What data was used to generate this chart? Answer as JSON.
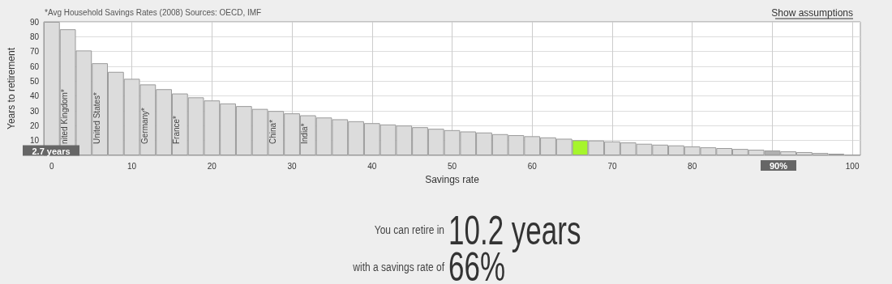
{
  "chart_data": {
    "type": "bar",
    "xlabel": "Savings rate",
    "ylabel": "Years to retirement",
    "x": [
      0,
      2,
      4,
      6,
      8,
      10,
      12,
      14,
      16,
      18,
      20,
      22,
      24,
      26,
      28,
      30,
      32,
      34,
      36,
      38,
      40,
      42,
      44,
      46,
      48,
      50,
      52,
      54,
      56,
      58,
      60,
      62,
      64,
      66,
      68,
      70,
      72,
      74,
      76,
      78,
      80,
      82,
      84,
      86,
      88,
      90,
      92,
      94,
      96,
      98,
      100
    ],
    "values": [
      90,
      85,
      70.7,
      62.1,
      56.3,
      51.6,
      47.8,
      44.6,
      41.7,
      39.1,
      37,
      35,
      33.2,
      31.3,
      29.9,
      28.3,
      27,
      25.5,
      24.3,
      23,
      21.7,
      20.8,
      20.1,
      19,
      17.9,
      17,
      16.1,
      15.4,
      14.3,
      13.6,
      12.9,
      12.1,
      11.2,
      10.2,
      10,
      9.4,
      8.7,
      7.8,
      7.2,
      6.7,
      6,
      5.4,
      4.9,
      4.3,
      3.8,
      3.3,
      2.7,
      2.2,
      1.6,
      1.1,
      0.5
    ],
    "colors": [
      "#dcdcdc",
      "#dcdcdc",
      "#dcdcdc",
      "#dcdcdc",
      "#dcdcdc",
      "#dcdcdc",
      "#dcdcdc",
      "#dcdcdc",
      "#dcdcdc",
      "#dcdcdc",
      "#dcdcdc",
      "#dcdcdc",
      "#dcdcdc",
      "#dcdcdc",
      "#dcdcdc",
      "#dcdcdc",
      "#dcdcdc",
      "#dcdcdc",
      "#dcdcdc",
      "#dcdcdc",
      "#dcdcdc",
      "#dcdcdc",
      "#dcdcdc",
      "#dcdcdc",
      "#dcdcdc",
      "#dcdcdc",
      "#dcdcdc",
      "#dcdcdc",
      "#dcdcdc",
      "#dcdcdc",
      "#dcdcdc",
      "#dcdcdc",
      "#dcdcdc",
      "#a6f52c",
      "#dcdcdc",
      "#dcdcdc",
      "#dcdcdc",
      "#dcdcdc",
      "#dcdcdc",
      "#dcdcdc",
      "#dcdcdc",
      "#dcdcdc",
      "#dcdcdc",
      "#dcdcdc",
      "#dcdcdc",
      "#b0b0b0",
      "#dcdcdc",
      "#dcdcdc",
      "#dcdcdc",
      "#dcdcdc",
      "#9a9a9a"
    ],
    "xlim": [
      -1,
      101
    ],
    "xticks": [
      0,
      10,
      20,
      30,
      40,
      50,
      60,
      70,
      80,
      {
        "value": 90,
        "label": null
      },
      100
    ],
    "ylim": [
      0,
      90
    ],
    "yticks": [
      10,
      20,
      30,
      40,
      50,
      60,
      70,
      80,
      90
    ],
    "grid": true,
    "annotations": [
      "*Avg Household Savings Rates (2008) Sources: OECD, IMF",
      "Show assumptions",
      "You can retire in",
      "10.2 years",
      "with a savings rate of",
      "66%",
      {
        "text": "nited Kingdom*",
        "x": 2,
        "y": 0
      },
      {
        "text": "United States*",
        "x": 6,
        "y": 0
      },
      {
        "text": "Germany*",
        "x": 12,
        "y": 0
      },
      {
        "text": "France*",
        "x": 16,
        "y": 0
      },
      {
        "text": "China*",
        "x": 28,
        "y": 0
      },
      {
        "text": "India*",
        "x": 32,
        "y": 0
      },
      "2.7 years",
      "90%"
    ]
  }
}
